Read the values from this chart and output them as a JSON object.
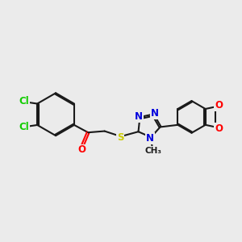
{
  "bg_color": "#ebebeb",
  "bond_color": "#1a1a1a",
  "bond_lw": 1.5,
  "dbl_off": 0.055,
  "colors": {
    "Cl": "#11cc00",
    "O": "#ff0000",
    "S": "#cccc00",
    "N": "#0000dd",
    "C": "#1a1a1a"
  },
  "fs": 8.5,
  "fs2": 7.5
}
